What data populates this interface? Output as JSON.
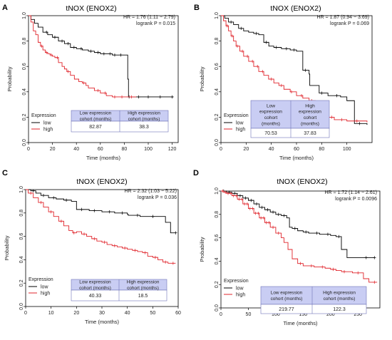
{
  "chart_data": [
    {
      "panel": "A",
      "type": "line",
      "title": "tNOX (ENOX2)",
      "xlabel": "Time (months)",
      "ylabel": "Probability",
      "xlim": [
        0,
        125
      ],
      "ylim": [
        0,
        1
      ],
      "xticks": [
        0,
        20,
        40,
        60,
        80,
        100,
        120
      ],
      "yticks": [
        0,
        0.2,
        0.4,
        0.6,
        0.8,
        1
      ],
      "yticklabels": [
        "0.0",
        "0.2",
        "0.4",
        "0.6",
        "0.8",
        "1.0"
      ],
      "hr_text": "HR = 1.76 (1.11 − 2.79)",
      "logrank_text": "logrank P = 0.015",
      "legend": {
        "title": "Expression",
        "position": "bottom-left"
      },
      "table": {
        "headers": [
          "Low expression cohort (months)",
          "High expression cohort (months)"
        ],
        "values": [
          "82.87",
          "38.3"
        ]
      },
      "series": [
        {
          "name": "low",
          "color": "#000000",
          "x": [
            0,
            2,
            5,
            8,
            12,
            16,
            20,
            25,
            30,
            35,
            40,
            45,
            50,
            55,
            60,
            65,
            70,
            75,
            80,
            82.87,
            83.5,
            85,
            100,
            121
          ],
          "y": [
            1.0,
            0.97,
            0.94,
            0.91,
            0.87,
            0.85,
            0.83,
            0.8,
            0.78,
            0.75,
            0.74,
            0.73,
            0.72,
            0.71,
            0.7,
            0.7,
            0.69,
            0.69,
            0.69,
            0.5,
            0.36,
            0.36,
            0.36,
            0.36
          ],
          "censor_x": [
            15,
            22,
            28,
            33,
            38,
            44,
            52,
            58,
            63,
            68,
            72,
            77,
            84,
            92,
            100,
            110,
            120
          ]
        },
        {
          "name": "high",
          "color": "#e0242b",
          "x": [
            0,
            2,
            4,
            6,
            8,
            10,
            12,
            14,
            16,
            18,
            20,
            22,
            25,
            28,
            30,
            32,
            35,
            38.3,
            42,
            45,
            48,
            50,
            55,
            60,
            65,
            70,
            75,
            80,
            90
          ],
          "y": [
            1.0,
            0.95,
            0.88,
            0.85,
            0.79,
            0.76,
            0.73,
            0.71,
            0.7,
            0.69,
            0.68,
            0.67,
            0.63,
            0.6,
            0.58,
            0.56,
            0.53,
            0.5,
            0.48,
            0.47,
            0.45,
            0.43,
            0.41,
            0.39,
            0.37,
            0.36,
            0.36,
            0.36,
            0.36
          ],
          "censor_x": [
            11,
            15,
            19,
            24,
            33,
            46,
            58,
            64,
            72,
            78,
            86
          ]
        }
      ]
    },
    {
      "panel": "B",
      "type": "line",
      "title": "tNOX (ENOX2)",
      "xlabel": "Time (months)",
      "ylabel": "Probability",
      "xlim": [
        0,
        120
      ],
      "ylim": [
        0,
        1
      ],
      "xticks": [
        0,
        20,
        40,
        60,
        80,
        100
      ],
      "yticks": [
        0,
        0.2,
        0.4,
        0.6,
        0.8,
        1
      ],
      "yticklabels": [
        "0.0",
        "0.2",
        "0.4",
        "0.6",
        "0.8",
        "1.0"
      ],
      "hr_text": "HR = 1.87 (0.94 − 3.69)",
      "logrank_text": "logrank P = 0.069",
      "legend": {
        "title": "Expression",
        "position": "bottom-left"
      },
      "table": {
        "headers": [
          "Low expression cohort (months)",
          "High expression cohort (months)"
        ],
        "values": [
          "70.53",
          "37.83"
        ]
      },
      "series": [
        {
          "name": "low",
          "color": "#000000",
          "x": [
            0,
            3,
            6,
            10,
            14,
            18,
            22,
            26,
            30,
            34,
            38,
            42,
            48,
            55,
            60,
            65,
            70,
            70.53,
            78,
            85,
            95,
            100,
            106,
            116
          ],
          "y": [
            1.0,
            0.98,
            0.95,
            0.93,
            0.9,
            0.88,
            0.87,
            0.86,
            0.85,
            0.79,
            0.76,
            0.75,
            0.74,
            0.73,
            0.72,
            0.57,
            0.54,
            0.45,
            0.39,
            0.37,
            0.36,
            0.33,
            0.15,
            0.14
          ],
          "censor_x": [
            8,
            16,
            28,
            36,
            44,
            52,
            58,
            67,
            80,
            92,
            110
          ]
        },
        {
          "name": "high",
          "color": "#e0242b",
          "x": [
            0,
            2,
            4,
            6,
            8,
            10,
            12,
            15,
            18,
            22,
            26,
            30,
            34,
            37.83,
            42,
            46,
            50,
            55,
            60,
            65,
            70,
            75,
            80,
            85,
            90,
            100,
            116
          ],
          "y": [
            1.0,
            0.96,
            0.92,
            0.88,
            0.84,
            0.8,
            0.76,
            0.72,
            0.68,
            0.64,
            0.6,
            0.56,
            0.53,
            0.5,
            0.47,
            0.45,
            0.42,
            0.4,
            0.37,
            0.35,
            0.33,
            0.32,
            0.31,
            0.2,
            0.18,
            0.17,
            0.16
          ],
          "censor_x": [
            5,
            9,
            13,
            17,
            21,
            25,
            29,
            33,
            40,
            48,
            56,
            64,
            72,
            88,
            96,
            108
          ]
        }
      ]
    },
    {
      "panel": "C",
      "type": "line",
      "title": "tNOX (ENOX2)",
      "xlabel": "Time (months)",
      "ylabel": "Probability",
      "xlim": [
        0,
        60
      ],
      "ylim": [
        0,
        1
      ],
      "xticks": [
        0,
        10,
        20,
        30,
        40,
        50,
        60
      ],
      "yticks": [
        0,
        0.2,
        0.4,
        0.6,
        0.8,
        1
      ],
      "yticklabels": [
        "0.0",
        "0.2",
        "0.4",
        "0.6",
        "0.8",
        "1.0"
      ],
      "hr_text": "HR = 2.32 (1.03 − 5.22)",
      "logrank_text": "logrank P = 0.036",
      "legend": {
        "title": "Expression",
        "position": "bottom-left"
      },
      "table": {
        "headers": [
          "Low expression cohort (months)",
          "High expression cohort (months)"
        ],
        "values": [
          "40.33",
          "18.5"
        ]
      },
      "series": [
        {
          "name": "low",
          "color": "#000000",
          "x": [
            0,
            2,
            4,
            6,
            9,
            12,
            15,
            18,
            20,
            25,
            30,
            35,
            40,
            40.33,
            45,
            50,
            55,
            57,
            59
          ],
          "y": [
            1.0,
            0.99,
            0.97,
            0.95,
            0.93,
            0.92,
            0.91,
            0.9,
            0.83,
            0.82,
            0.81,
            0.8,
            0.79,
            0.78,
            0.77,
            0.77,
            0.72,
            0.63,
            0.63
          ],
          "censor_x": [
            3,
            7,
            11,
            16,
            22,
            27,
            33,
            38,
            44,
            50,
            59
          ]
        },
        {
          "name": "high",
          "color": "#e0242b",
          "x": [
            0,
            1,
            3,
            5,
            7,
            9,
            11,
            13,
            15,
            17,
            18.5,
            20,
            22,
            24,
            26,
            28,
            30,
            32,
            34,
            36,
            38,
            40,
            42,
            44,
            46,
            48,
            50,
            52,
            54,
            56,
            59
          ],
          "y": [
            1.0,
            0.97,
            0.93,
            0.89,
            0.85,
            0.81,
            0.77,
            0.73,
            0.69,
            0.65,
            0.63,
            0.64,
            0.62,
            0.6,
            0.58,
            0.56,
            0.55,
            0.53,
            0.52,
            0.51,
            0.5,
            0.49,
            0.48,
            0.47,
            0.46,
            0.43,
            0.42,
            0.4,
            0.38,
            0.37,
            0.37
          ],
          "censor_x": [
            2,
            6,
            10,
            14,
            19,
            23,
            27,
            31,
            35,
            39,
            43,
            47,
            51,
            55,
            58
          ]
        }
      ]
    },
    {
      "panel": "D",
      "type": "line",
      "title": "tNOX (ENOX2)",
      "xlabel": "Time (months)",
      "ylabel": "Probability",
      "xlim": [
        0,
        290
      ],
      "ylim": [
        0,
        1
      ],
      "xticks": [
        0,
        50,
        100,
        150,
        200,
        250
      ],
      "yticks": [
        0,
        0.2,
        0.4,
        0.6,
        0.8,
        1
      ],
      "yticklabels": [
        "0.0",
        "0.2",
        "0.4",
        "0.6",
        "0.8",
        "1.0"
      ],
      "hr_text": "HR = 1.72 (1.14 − 2.61)",
      "logrank_text": "logrank P = 0.0096",
      "legend": {
        "title": "Expression",
        "position": "bottom-left"
      },
      "table": {
        "headers": [
          "Low expression cohort (months)",
          "High expression cohort (months)"
        ],
        "values": [
          "219.77",
          "122.3"
        ]
      },
      "series": [
        {
          "name": "low",
          "color": "#000000",
          "x": [
            0,
            10,
            20,
            30,
            40,
            50,
            60,
            70,
            80,
            90,
            100,
            110,
            120,
            125,
            130,
            140,
            150,
            160,
            170,
            180,
            190,
            200,
            210,
            219.77,
            230,
            250,
            280
          ],
          "y": [
            1.0,
            0.99,
            0.98,
            0.96,
            0.94,
            0.92,
            0.89,
            0.86,
            0.84,
            0.82,
            0.8,
            0.79,
            0.77,
            0.69,
            0.68,
            0.66,
            0.65,
            0.64,
            0.64,
            0.63,
            0.63,
            0.62,
            0.61,
            0.5,
            0.43,
            0.43,
            0.43
          ],
          "censor_x": [
            5,
            15,
            25,
            35,
            45,
            55,
            65,
            75,
            85,
            95,
            105,
            115,
            135,
            155,
            175,
            195,
            215,
            265,
            280
          ]
        },
        {
          "name": "high",
          "color": "#e0242b",
          "x": [
            0,
            5,
            10,
            20,
            30,
            40,
            50,
            60,
            70,
            80,
            90,
            100,
            110,
            115,
            122.3,
            130,
            140,
            150,
            160,
            170,
            180,
            190,
            200,
            210,
            220,
            240,
            260,
            270,
            285
          ],
          "y": [
            1.0,
            0.99,
            0.98,
            0.96,
            0.93,
            0.89,
            0.85,
            0.81,
            0.77,
            0.73,
            0.69,
            0.64,
            0.6,
            0.56,
            0.5,
            0.42,
            0.38,
            0.36,
            0.36,
            0.35,
            0.35,
            0.34,
            0.33,
            0.32,
            0.31,
            0.3,
            0.25,
            0.22,
            0.22
          ],
          "censor_x": [
            3,
            8,
            13,
            18,
            23,
            28,
            33,
            38,
            43,
            48,
            53,
            58,
            63,
            68,
            73,
            78,
            83,
            88,
            95,
            105,
            145,
            165,
            185,
            205,
            225,
            250,
            280
          ]
        }
      ]
    }
  ]
}
